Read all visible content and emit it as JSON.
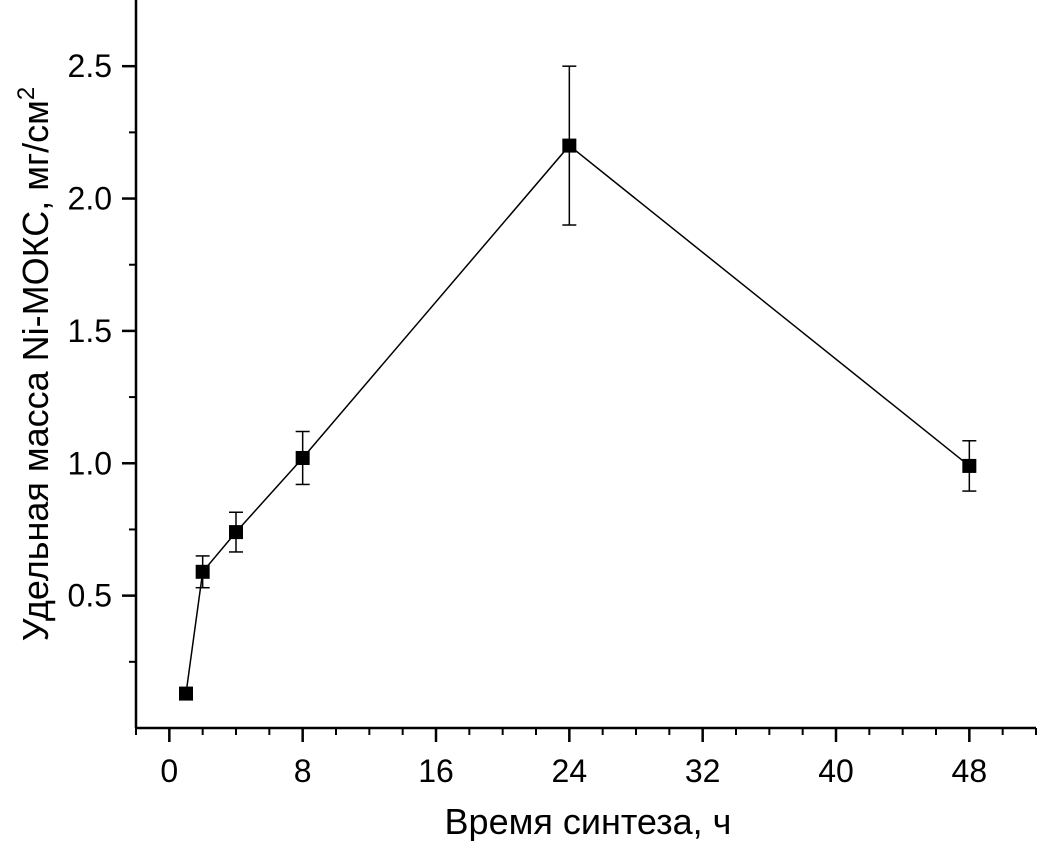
{
  "chart_data": {
    "type": "line",
    "xlabel": "Время синтеза, ч",
    "ylabel_main": "Удельная масса Ni-МОКС, мг/см",
    "ylabel_sup": "2",
    "xlim": [
      -2,
      52
    ],
    "ylim": [
      0,
      2.75
    ],
    "xticks": [
      0,
      8,
      16,
      24,
      32,
      40,
      48
    ],
    "xtick_labels": [
      "0",
      "8",
      "16",
      "24",
      "32",
      "40",
      "48"
    ],
    "yticks": [
      0.5,
      1.0,
      1.5,
      2.0,
      2.5
    ],
    "ytick_labels": [
      "0.5",
      "1.0",
      "1.5",
      "2.0",
      "2.5"
    ],
    "series": [
      {
        "x": [
          1,
          2,
          4,
          8,
          24,
          48
        ],
        "y": [
          0.13,
          0.59,
          0.74,
          1.02,
          2.2,
          0.99
        ],
        "yerr": [
          0,
          0.06,
          0.075,
          0.1,
          0.3,
          0.095
        ]
      }
    ],
    "marker": "square",
    "color": "#000000",
    "grid": false,
    "legend": false
  }
}
